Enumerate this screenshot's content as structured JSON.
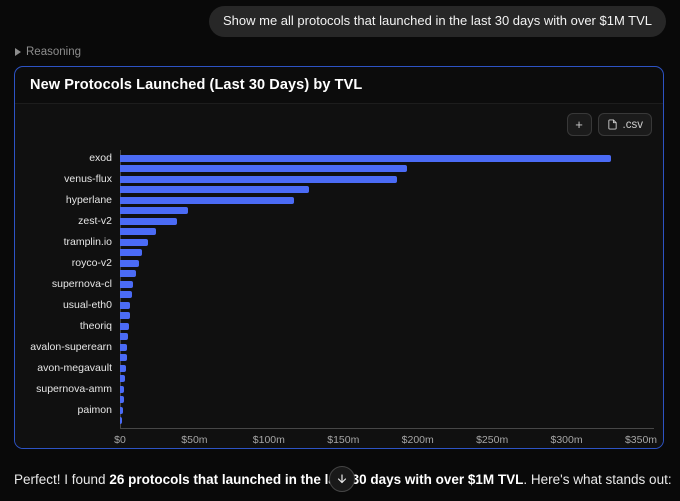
{
  "conversation": {
    "user_message": "Show me all protocols that launched in the last 30 days with over $1M TVL",
    "reasoning_label": "Reasoning"
  },
  "panel": {
    "title": "New Protocols Launched (Last 30 Days) by TVL",
    "toolbar": {
      "plus_label": "+",
      "csv_label": ".csv"
    }
  },
  "chart_data": {
    "type": "bar",
    "orientation": "horizontal",
    "title": "New Protocols Launched (Last 30 Days) by TVL",
    "value_unit": "$m TVL",
    "xlim": [
      0,
      350
    ],
    "x_ticks": [
      "$0",
      "$50m",
      "$100m",
      "$150m",
      "$200m",
      "$250m",
      "$300m",
      "$350m"
    ],
    "grid": false,
    "bar_color": "#4b6bf5",
    "note": "26 bars sorted descending; y-axis labels shown for alternating bars only",
    "bars": [
      {
        "label": "exod",
        "value": 330
      },
      {
        "label": "",
        "value": 193
      },
      {
        "label": "venus-flux",
        "value": 186
      },
      {
        "label": "",
        "value": 127
      },
      {
        "label": "hyperlane",
        "value": 117
      },
      {
        "label": "",
        "value": 46
      },
      {
        "label": "zest-v2",
        "value": 38
      },
      {
        "label": "",
        "value": 24
      },
      {
        "label": "tramplin.io",
        "value": 19
      },
      {
        "label": "",
        "value": 15
      },
      {
        "label": "royco-v2",
        "value": 13
      },
      {
        "label": "",
        "value": 11
      },
      {
        "label": "supernova-cl",
        "value": 9
      },
      {
        "label": "",
        "value": 8
      },
      {
        "label": "usual-eth0",
        "value": 7
      },
      {
        "label": "",
        "value": 6.5
      },
      {
        "label": "theoriq",
        "value": 6
      },
      {
        "label": "",
        "value": 5.5
      },
      {
        "label": "avalon-superearn",
        "value": 5
      },
      {
        "label": "",
        "value": 4.5
      },
      {
        "label": "avon-megavault",
        "value": 4
      },
      {
        "label": "",
        "value": 3.5
      },
      {
        "label": "supernova-amm",
        "value": 3
      },
      {
        "label": "",
        "value": 2.5
      },
      {
        "label": "paimon",
        "value": 2
      },
      {
        "label": "",
        "value": 1.5
      }
    ]
  },
  "answer": {
    "prefix": "Perfect! I found ",
    "bold": "26 protocols that launched in the last 30 days with over $1M TVL",
    "suffix": ". Here's what stands out:"
  },
  "colors": {
    "accent_blue": "#4b6bf5",
    "panel_border": "#2d53c4",
    "background": "#090909"
  }
}
